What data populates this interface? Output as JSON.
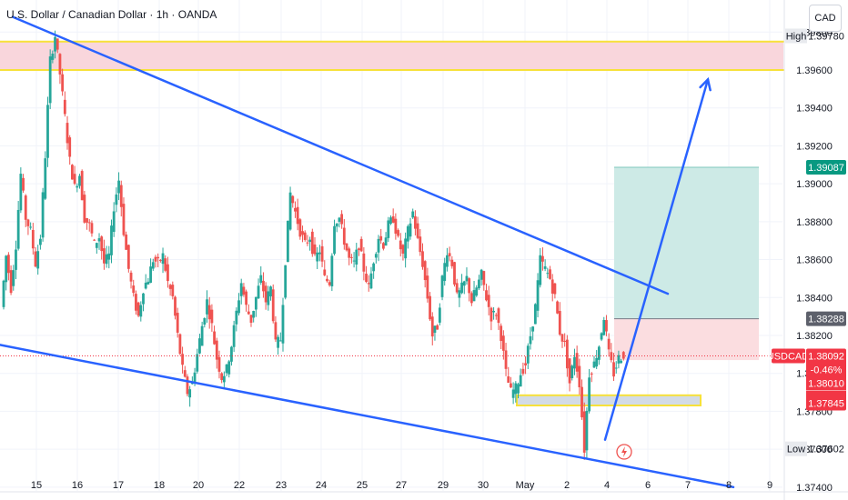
{
  "header": {
    "title": "U.S. Dollar / Canadian Dollar · 1h · OANDA",
    "currency": "CAD"
  },
  "colors": {
    "trendline": "#2962ff",
    "zone_fill": "#f9d6dc",
    "zone_border": "#f7e13a",
    "target_fill": "#cdeae6",
    "stop_fill": "#fbdde0",
    "candle_up": "#26a69a",
    "candle_down": "#ef5350",
    "price_label": "#f23645",
    "target_label": "#089981"
  },
  "chart_data": {
    "type": "candlestick",
    "symbol": "USDCAD",
    "interval": "1h",
    "x_tick_labels": [
      "15",
      "16",
      "17",
      "18",
      "20",
      "22",
      "23",
      "24",
      "25",
      "27",
      "29",
      "30",
      "May",
      "2",
      "4",
      "6",
      "7",
      "8",
      "9"
    ],
    "y_tick_labels": [
      "1.37400",
      "1.37600",
      "1.37800",
      "1.38000",
      "1.38200",
      "1.38400",
      "1.38600",
      "1.38800",
      "1.39000",
      "1.39200",
      "1.39400",
      "1.39600",
      "1.39800"
    ],
    "ylim": [
      1.3738,
      1.3995
    ],
    "grid": true,
    "price_path": [
      1.3835,
      1.3862,
      1.3845,
      1.3868,
      1.3905,
      1.3882,
      1.3875,
      1.3858,
      1.3872,
      1.3915,
      1.3965,
      1.3978,
      1.3958,
      1.3935,
      1.3912,
      1.3898,
      1.3905,
      1.3882,
      1.3878,
      1.3868,
      1.3872,
      1.3858,
      1.3862,
      1.3888,
      1.3902,
      1.3875,
      1.3855,
      1.384,
      1.383,
      1.3845,
      1.385,
      1.386,
      1.3858,
      1.3862,
      1.3848,
      1.384,
      1.382,
      1.3802,
      1.379,
      1.3795,
      1.381,
      1.3825,
      1.3838,
      1.3825,
      1.3808,
      1.3798,
      1.3802,
      1.3815,
      1.3832,
      1.3848,
      1.3835,
      1.3828,
      1.384,
      1.385,
      1.3838,
      1.3845,
      1.3815,
      1.3818,
      1.386,
      1.3895,
      1.3885,
      1.3875,
      1.3868,
      1.3872,
      1.386,
      1.3865,
      1.385,
      1.3848,
      1.388,
      1.3882,
      1.387,
      1.386,
      1.3858,
      1.3868,
      1.3855,
      1.3845,
      1.386,
      1.3872,
      1.3868,
      1.3878,
      1.3882,
      1.387,
      1.3862,
      1.3875,
      1.3885,
      1.387,
      1.3858,
      1.384,
      1.382,
      1.3825,
      1.385,
      1.3865,
      1.3858,
      1.384,
      1.3845,
      1.385,
      1.3838,
      1.3845,
      1.3852,
      1.384,
      1.383,
      1.3832,
      1.382,
      1.38,
      1.379,
      1.3792,
      1.38,
      1.3805,
      1.382,
      1.3835,
      1.386,
      1.3855,
      1.385,
      1.384,
      1.3822,
      1.3815,
      1.3795,
      1.381,
      1.3795,
      1.376,
      1.38,
      1.3805,
      1.3815,
      1.383,
      1.381,
      1.38,
      1.3808,
      1.381
    ],
    "annotations": {
      "resistance_zone": [
        1.396,
        1.3975
      ],
      "support_zone": [
        1.37845,
        1.3787
      ],
      "upper_trendline": {
        "from": [
          "15",
          1.3988
        ],
        "to": [
          "6",
          1.3842
        ]
      },
      "lower_trendline": {
        "from": [
          "15",
          1.3815
        ],
        "to": [
          "8",
          1.374
        ]
      },
      "projection_arrow": {
        "from": [
          "4",
          1.37602
        ],
        "to": [
          "7",
          1.3955
        ]
      },
      "long_position": {
        "entry": 1.38288,
        "target": 1.39087,
        "stop": 1.3807
      }
    },
    "price_labels": [
      {
        "text": "High",
        "value": "1.39780"
      },
      {
        "text": "",
        "value": "1.39087"
      },
      {
        "text": "",
        "value": "1.38288"
      },
      {
        "text": "USDCAD",
        "value": "1.38092"
      },
      {
        "text": "",
        "value": "-0.46%"
      },
      {
        "text": "",
        "value": "1.38010"
      },
      {
        "text": "",
        "value": "1.37845"
      },
      {
        "text": "Low",
        "value": "1.37602"
      }
    ]
  }
}
